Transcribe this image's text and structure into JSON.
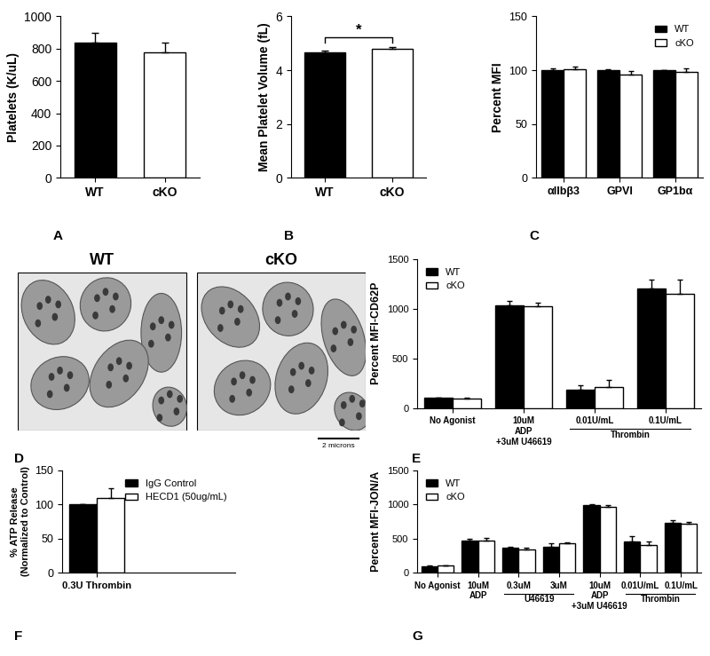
{
  "chart_data": [
    {
      "panel_label": "A",
      "type": "bar",
      "categories": [
        "WT",
        "cKO"
      ],
      "values": [
        835,
        778
      ],
      "errors": [
        65,
        58
      ],
      "colors": [
        "#000000",
        "#ffffff"
      ],
      "y_label": "Platelets (K/uL)",
      "ylim": [
        0,
        1000
      ],
      "yticks": [
        0,
        200,
        400,
        600,
        800,
        1000
      ]
    },
    {
      "panel_label": "B",
      "type": "bar",
      "categories": [
        "WT",
        "cKO"
      ],
      "values": [
        4.65,
        4.8
      ],
      "errors": [
        0.07,
        0.06
      ],
      "colors": [
        "#000000",
        "#ffffff"
      ],
      "y_label": "Mean Platelet Volume (fL)",
      "ylim": [
        0,
        6
      ],
      "yticks": [
        0,
        2,
        4,
        6
      ],
      "annotations": [
        {
          "text": "*",
          "between": [
            "WT",
            "cKO"
          ]
        }
      ]
    },
    {
      "panel_label": "C",
      "type": "bar",
      "categories": [
        "αIIbβ3",
        "GPVI",
        "GP1bα"
      ],
      "series": [
        {
          "name": "WT",
          "color": "#000000",
          "values": [
            100,
            100,
            100
          ],
          "errors": [
            1.5,
            1,
            0
          ]
        },
        {
          "name": "cKO",
          "color": "#ffffff",
          "values": [
            101,
            96,
            98
          ],
          "errors": [
            2,
            3,
            4
          ]
        }
      ],
      "y_label": "Percent MFI",
      "ylim": [
        0,
        150
      ],
      "yticks": [
        0,
        50,
        100,
        150
      ],
      "legend": "upper right"
    },
    {
      "panel_label": "E",
      "type": "bar",
      "categories": [
        "No Agonist",
        "10uM\nADP\n+3uM U46619",
        "0.01U/mL",
        "0.1U/mL"
      ],
      "category_groups": [
        {
          "label": "Thrombin",
          "members": [
            "0.01U/mL",
            "0.1U/mL"
          ]
        }
      ],
      "series": [
        {
          "name": "WT",
          "color": "#000000",
          "values": [
            100,
            1030,
            185,
            1200
          ],
          "errors": [
            5,
            45,
            40,
            95
          ]
        },
        {
          "name": "cKO",
          "color": "#ffffff",
          "values": [
            95,
            1025,
            215,
            1150
          ],
          "errors": [
            5,
            40,
            65,
            140
          ]
        }
      ],
      "y_label": "Percent MFI-CD62P",
      "ylim": [
        0,
        1500
      ],
      "yticks": [
        0,
        500,
        1000,
        1500
      ],
      "legend": "upper left"
    },
    {
      "panel_label": "F",
      "type": "bar",
      "categories": [
        "0.3U Thrombin"
      ],
      "series": [
        {
          "name": "IgG Control",
          "color": "#000000",
          "values": [
            100
          ],
          "errors": [
            0
          ]
        },
        {
          "name": "HECD1 (50ug/mL)",
          "color": "#ffffff",
          "values": [
            109
          ],
          "errors": [
            15
          ]
        }
      ],
      "y_label": "% ATP Release\n(Normalized to Control)",
      "ylim": [
        0,
        150
      ],
      "yticks": [
        0,
        50,
        100,
        150
      ],
      "legend": "upper right"
    },
    {
      "panel_label": "G",
      "type": "bar",
      "categories": [
        "No Agonist",
        "10uM\nADP",
        "0.3uM",
        "3uM",
        "10uM\nADP\n+3uM U46619",
        "0.01U/mL",
        "0.1U/mL"
      ],
      "category_groups": [
        {
          "label": "U46619",
          "members": [
            "0.3uM",
            "3uM"
          ]
        },
        {
          "label": "Thrombin",
          "members": [
            "0.01U/mL",
            "0.1U/mL"
          ]
        }
      ],
      "series": [
        {
          "name": "WT",
          "color": "#000000",
          "values": [
            95,
            470,
            360,
            375,
            985,
            460,
            735
          ],
          "errors": [
            5,
            20,
            25,
            50,
            15,
            70,
            30
          ]
        },
        {
          "name": "cKO",
          "color": "#ffffff",
          "values": [
            100,
            475,
            345,
            430,
            960,
            400,
            715
          ],
          "errors": [
            5,
            30,
            20,
            15,
            25,
            55,
            30
          ]
        }
      ],
      "y_label": "Percent MFI-JON/A",
      "ylim": [
        0,
        1500
      ],
      "yticks": [
        0,
        500,
        1000,
        1500
      ],
      "legend": "upper left"
    }
  ],
  "micrograph": {
    "panel_label": "D",
    "titles": [
      "WT",
      "cKO"
    ],
    "scale_bar": "2 microns"
  }
}
